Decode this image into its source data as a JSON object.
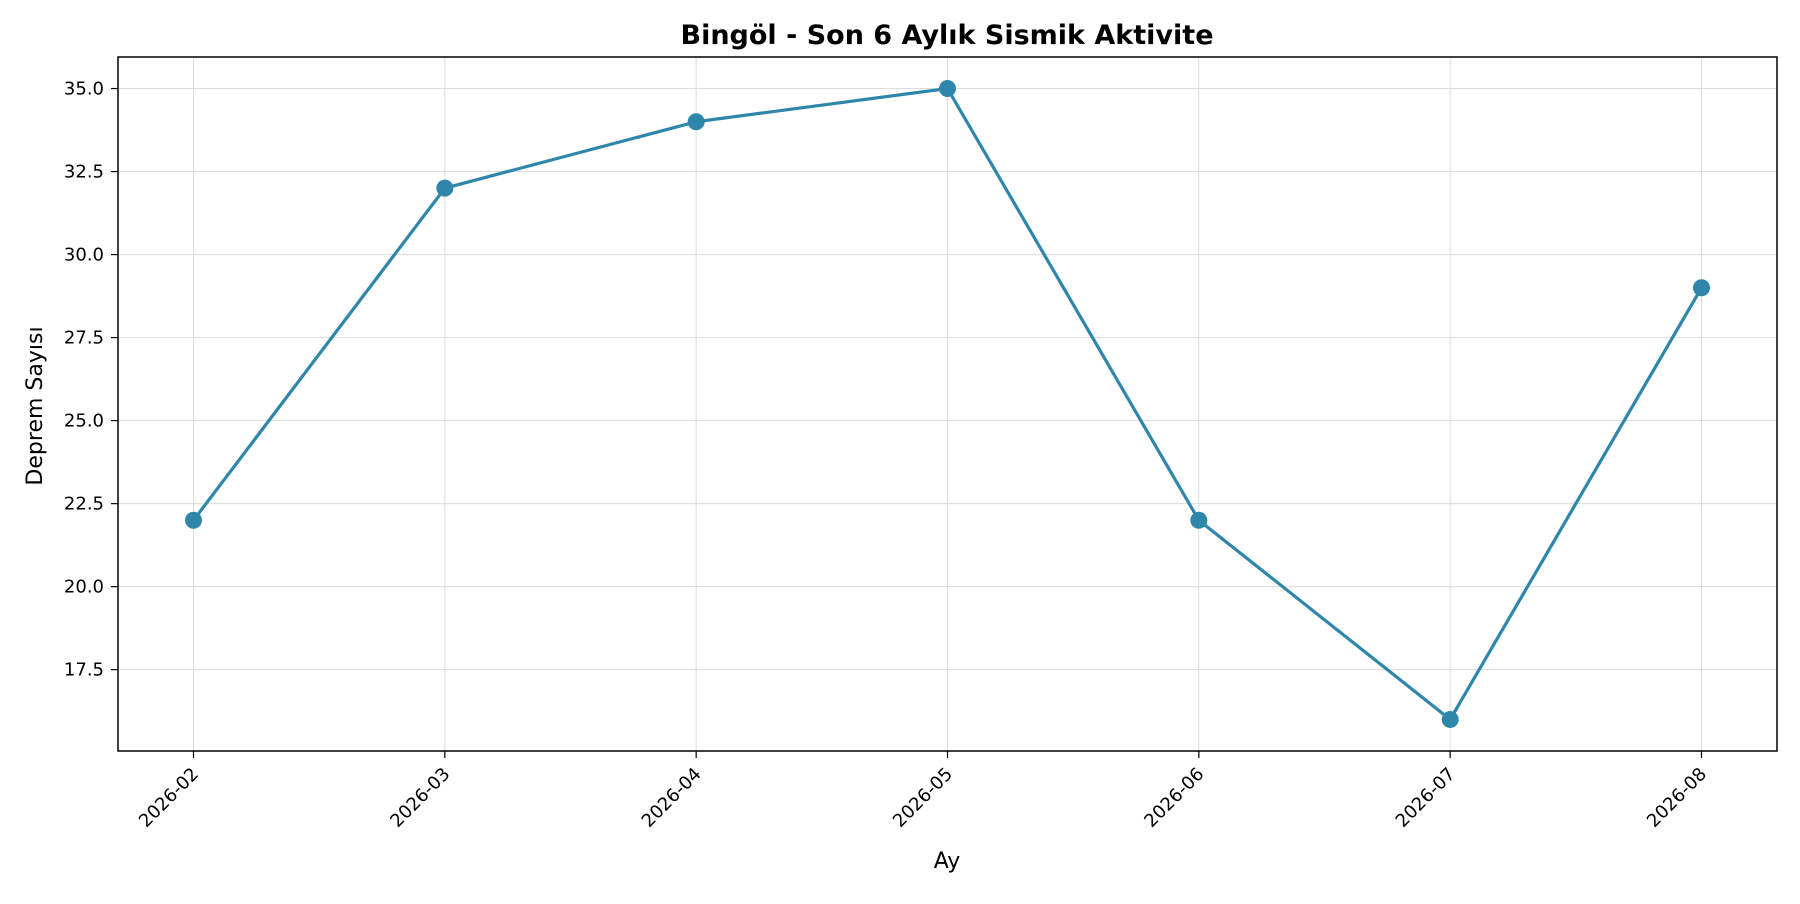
{
  "chart_data": {
    "type": "line",
    "title": "Bingöl - Son 6 Aylık Sismik Aktivite",
    "xlabel": "Ay",
    "ylabel": "Deprem Sayısı",
    "categories": [
      "2026-02",
      "2026-03",
      "2026-04",
      "2026-05",
      "2026-06",
      "2026-07",
      "2026-08"
    ],
    "series": [
      {
        "values": [
          22,
          32,
          34,
          35,
          22,
          16,
          29
        ],
        "color": "#2e86ab"
      }
    ],
    "ylim": [
      15.05,
      35.95
    ],
    "yticks": [
      "17.5",
      "20.0",
      "22.5",
      "25.0",
      "27.5",
      "30.0",
      "32.5",
      "35.0"
    ],
    "grid": true,
    "x_tick_rotation_deg": 45
  }
}
